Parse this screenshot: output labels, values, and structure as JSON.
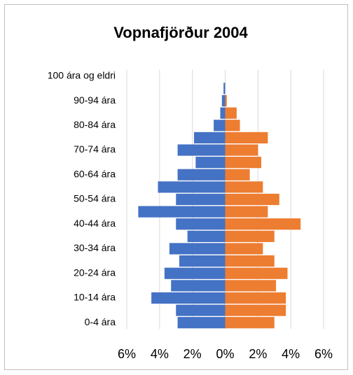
{
  "chart_data": {
    "type": "pyramid",
    "title": "Vopnafjörður 2004",
    "categories": [
      "0-4 ára",
      null,
      "10-14 ára",
      null,
      "20-24 ára",
      null,
      "30-34 ára",
      null,
      "40-44 ára",
      null,
      "50-54 ára",
      null,
      "60-64 ára",
      null,
      "70-74 ára",
      null,
      "80-84 ára",
      null,
      "90-94 ára",
      null,
      "100 ára og eldri"
    ],
    "series": [
      {
        "color": "#4472c4",
        "values": [
          -2.9,
          -3.0,
          -4.5,
          -3.3,
          -3.7,
          -2.8,
          -3.4,
          -2.3,
          -3.0,
          -5.3,
          -3.0,
          -4.1,
          -2.9,
          -1.8,
          -2.9,
          -1.9,
          -0.7,
          -0.3,
          -0.2,
          -0.1,
          0
        ]
      },
      {
        "color": "#ed7d31",
        "values": [
          3.0,
          3.7,
          3.7,
          3.1,
          3.8,
          3.0,
          2.3,
          3.0,
          4.6,
          2.6,
          3.3,
          2.3,
          1.5,
          2.2,
          2.0,
          2.6,
          0.9,
          0.7,
          0.1,
          0,
          0
        ]
      }
    ],
    "xlim": [
      -6,
      6
    ],
    "xticks": [
      {
        "value": -6,
        "label": "6%"
      },
      {
        "value": -4,
        "label": "4%"
      },
      {
        "value": -2,
        "label": "2%"
      },
      {
        "value": 0,
        "label": "0%"
      },
      {
        "value": 2,
        "label": "2%"
      },
      {
        "value": 4,
        "label": "4%"
      },
      {
        "value": 6,
        "label": "6%"
      }
    ],
    "grid": true
  }
}
